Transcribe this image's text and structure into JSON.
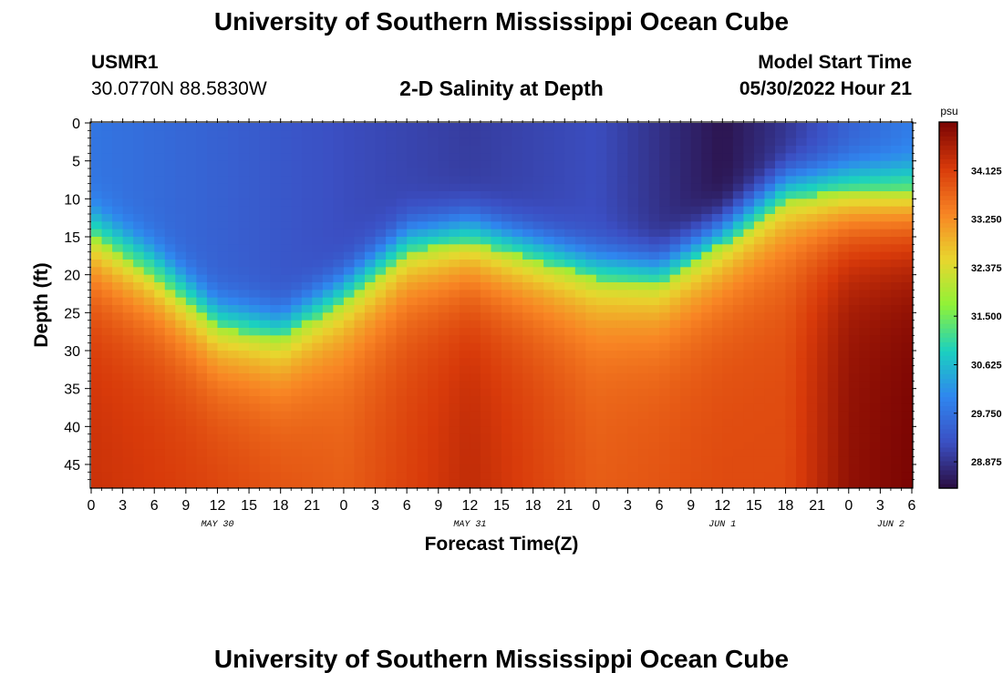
{
  "header": {
    "title": "University of Southern Mississippi Ocean Cube",
    "station_id": "USMR1",
    "coordinates": "30.0770N  88.5830W",
    "subtitle": "2-D Salinity at Depth",
    "model_start_label": "Model Start Time",
    "model_start_value": "05/30/2022 Hour 21"
  },
  "footer": {
    "title": "University of Southern Mississippi Ocean Cube"
  },
  "chart_data": {
    "type": "heatmap",
    "title": "2-D Salinity at Depth",
    "xlabel": "Forecast Time(Z)",
    "ylabel": "Depth (ft)",
    "x_unit": "hours since May 30 00Z",
    "x_range": [
      0,
      78
    ],
    "y_range": [
      0,
      48
    ],
    "x_tick_values": [
      0,
      3,
      6,
      9,
      12,
      15,
      18,
      21,
      24,
      27,
      30,
      33,
      36,
      39,
      42,
      45,
      48,
      51,
      54,
      57,
      60,
      63,
      66,
      69,
      72,
      75,
      78
    ],
    "x_tick_labels": [
      "0",
      "3",
      "6",
      "9",
      "12",
      "15",
      "18",
      "21",
      "0",
      "3",
      "6",
      "9",
      "12",
      "15",
      "18",
      "21",
      "0",
      "3",
      "6",
      "9",
      "12",
      "15",
      "18",
      "21",
      "0",
      "3",
      "6"
    ],
    "date_labels": [
      {
        "x": 12,
        "label": "MAY 30"
      },
      {
        "x": 36,
        "label": "MAY 31"
      },
      {
        "x": 60,
        "label": "JUN 1"
      },
      {
        "x": 76,
        "label": "JUN 2"
      }
    ],
    "y_tick_values": [
      0,
      5,
      10,
      15,
      20,
      25,
      30,
      35,
      40,
      45
    ],
    "y_tick_labels": [
      "0",
      "5",
      "10",
      "15",
      "20",
      "25",
      "30",
      "35",
      "40",
      "45"
    ],
    "colorbar": {
      "unit": "psu",
      "range": [
        28.4,
        35.0
      ],
      "tick_values": [
        28.875,
        29.75,
        30.625,
        31.5,
        32.375,
        33.25,
        34.125
      ],
      "tick_labels": [
        "28.875",
        "29.750",
        "30.625",
        "31.500",
        "32.375",
        "33.250",
        "34.125"
      ],
      "colors": [
        "#2a0c3f",
        "#3b4fc3",
        "#2f86ef",
        "#1bd0c0",
        "#8ef238",
        "#e8d62e",
        "#f88524",
        "#d83a0a",
        "#7a0403"
      ]
    },
    "halocline_depth_ft": {
      "x": [
        0,
        6,
        12,
        18,
        24,
        30,
        36,
        42,
        48,
        54,
        60,
        66,
        72,
        78
      ],
      "depth": [
        15,
        20,
        27,
        28.5,
        23.5,
        17,
        15.5,
        18,
        20.5,
        21,
        16,
        10,
        9,
        9
      ]
    },
    "surface_salinity_psu": {
      "x": [
        0,
        12,
        24,
        36,
        48,
        60,
        66,
        72,
        78
      ],
      "values": [
        29.8,
        29.5,
        29.2,
        29.0,
        29.2,
        28.5,
        28.9,
        29.5,
        29.9
      ]
    },
    "bottom_salinity_psu": {
      "x": [
        0,
        12,
        24,
        36,
        48,
        60,
        66,
        72,
        78
      ],
      "values": [
        34.3,
        34.1,
        33.8,
        34.4,
        33.8,
        34.0,
        34.0,
        34.8,
        35.0
      ]
    }
  }
}
